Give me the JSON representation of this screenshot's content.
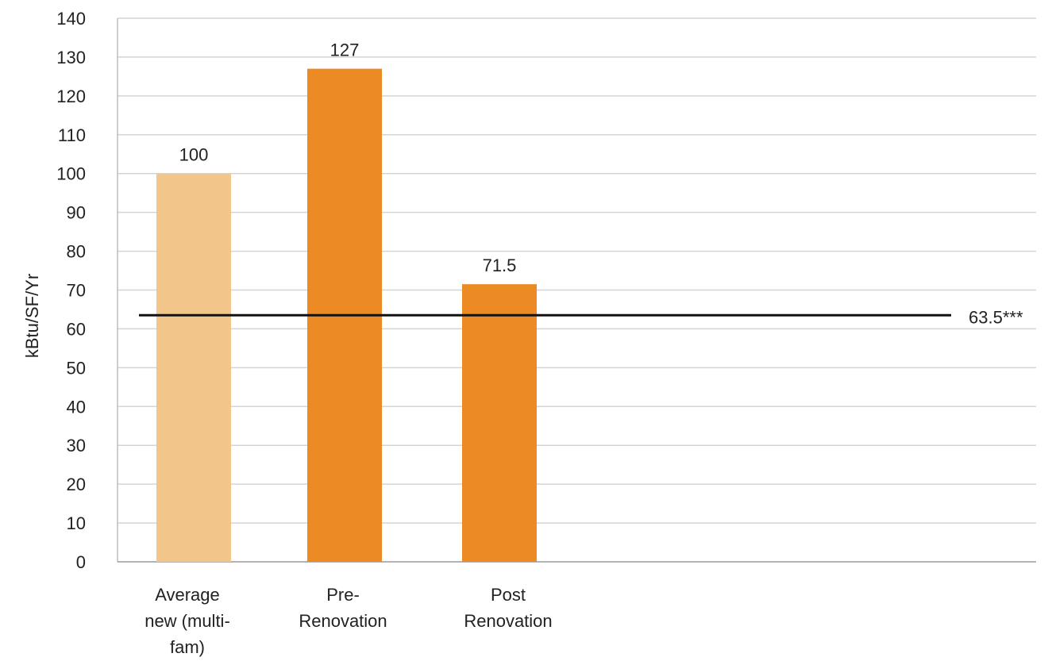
{
  "chart_data": {
    "type": "bar",
    "categories": [
      [
        "Average",
        "new (multi-",
        "fam)"
      ],
      [
        "Pre-",
        "Renovation"
      ],
      [
        "Post",
        "Renovation"
      ]
    ],
    "values": [
      100,
      127,
      71.5
    ],
    "data_labels": [
      "100",
      "127",
      "71.5"
    ],
    "bar_colors": [
      "#f2c58a",
      "#ec8a24",
      "#ec8a24"
    ],
    "title": "",
    "xlabel": "",
    "ylabel": "kBtu/SF/Yr",
    "ylim": [
      0,
      140
    ],
    "y_ticks": [
      0,
      10,
      20,
      30,
      40,
      50,
      60,
      70,
      80,
      90,
      100,
      110,
      120,
      130,
      140
    ],
    "grid": true,
    "reference_line": {
      "value": 63.5,
      "label": "63.5***",
      "color": "#111111"
    }
  }
}
